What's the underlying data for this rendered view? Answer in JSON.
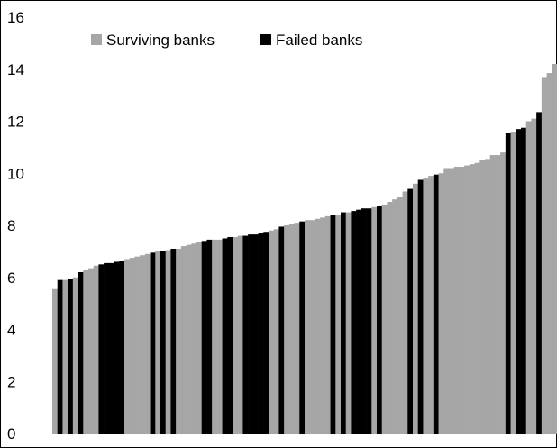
{
  "chart_data": {
    "type": "bar",
    "title": "",
    "xlabel": "",
    "ylabel": "",
    "ylim": [
      0,
      16
    ],
    "yticks": [
      "0",
      "2",
      "4",
      "6",
      "8",
      "10",
      "12",
      "14",
      "16"
    ],
    "grid": false,
    "legend_position": "top-left",
    "legend": [
      {
        "label": "Surviving banks",
        "color": "#a6a6a6"
      },
      {
        "label": "Failed banks",
        "color": "#000000"
      }
    ],
    "series": [
      {
        "name": "Surviving banks",
        "color": "#a6a6a6",
        "values": [
          5.55,
          5.9,
          6.0,
          6.3,
          6.35,
          6.45,
          6.7,
          6.75,
          6.8,
          6.85,
          6.9,
          7.05,
          7.1,
          7.2,
          7.25,
          7.3,
          7.35,
          7.4,
          7.45,
          7.5,
          7.55,
          7.6,
          7.65,
          7.7,
          7.75,
          7.8,
          7.85,
          7.9,
          8.0,
          8.05,
          8.1,
          8.2,
          8.25,
          8.3,
          8.35,
          8.4,
          8.5,
          8.8,
          8.9,
          9.0,
          9.1,
          9.3,
          9.6,
          9.8,
          9.9,
          10.0,
          10.2,
          10.25,
          10.3,
          10.35,
          10.4,
          10.5,
          10.55,
          10.7,
          10.8,
          11.1,
          11.4,
          11.6,
          11.7,
          12.0,
          12.3,
          13.6,
          13.8,
          14.2
        ]
      },
      {
        "name": "Failed banks",
        "color": "#000000",
        "values": [
          5.9,
          5.95,
          6.2,
          6.5,
          6.55,
          6.6,
          6.65,
          6.95,
          7.0,
          7.1,
          7.4,
          7.45,
          7.5,
          7.55,
          7.6,
          7.65,
          7.7,
          7.75,
          7.95,
          8.15,
          8.4,
          8.5,
          8.55,
          8.6,
          8.65,
          8.7,
          9.4,
          9.75,
          9.95,
          11.55,
          11.7,
          11.75,
          12.35
        ]
      }
    ],
    "bars": [
      {
        "v": 5.55,
        "s": 0
      },
      {
        "v": 5.9,
        "s": 1
      },
      {
        "v": 5.9,
        "s": 0
      },
      {
        "v": 5.95,
        "s": 1
      },
      {
        "v": 6.0,
        "s": 0
      },
      {
        "v": 6.2,
        "s": 1
      },
      {
        "v": 6.3,
        "s": 0
      },
      {
        "v": 6.35,
        "s": 0
      },
      {
        "v": 6.45,
        "s": 0
      },
      {
        "v": 6.5,
        "s": 1
      },
      {
        "v": 6.55,
        "s": 1
      },
      {
        "v": 6.55,
        "s": 1
      },
      {
        "v": 6.6,
        "s": 1
      },
      {
        "v": 6.65,
        "s": 1
      },
      {
        "v": 6.7,
        "s": 0
      },
      {
        "v": 6.75,
        "s": 0
      },
      {
        "v": 6.8,
        "s": 0
      },
      {
        "v": 6.85,
        "s": 0
      },
      {
        "v": 6.9,
        "s": 0
      },
      {
        "v": 6.95,
        "s": 1
      },
      {
        "v": 7.0,
        "s": 0
      },
      {
        "v": 7.0,
        "s": 1
      },
      {
        "v": 7.05,
        "s": 0
      },
      {
        "v": 7.1,
        "s": 1
      },
      {
        "v": 7.1,
        "s": 0
      },
      {
        "v": 7.2,
        "s": 0
      },
      {
        "v": 7.25,
        "s": 0
      },
      {
        "v": 7.3,
        "s": 0
      },
      {
        "v": 7.35,
        "s": 0
      },
      {
        "v": 7.4,
        "s": 1
      },
      {
        "v": 7.45,
        "s": 1
      },
      {
        "v": 7.45,
        "s": 0
      },
      {
        "v": 7.45,
        "s": 0
      },
      {
        "v": 7.5,
        "s": 1
      },
      {
        "v": 7.55,
        "s": 1
      },
      {
        "v": 7.55,
        "s": 0
      },
      {
        "v": 7.6,
        "s": 0
      },
      {
        "v": 7.6,
        "s": 1
      },
      {
        "v": 7.65,
        "s": 1
      },
      {
        "v": 7.65,
        "s": 1
      },
      {
        "v": 7.7,
        "s": 1
      },
      {
        "v": 7.75,
        "s": 1
      },
      {
        "v": 7.8,
        "s": 0
      },
      {
        "v": 7.85,
        "s": 0
      },
      {
        "v": 7.95,
        "s": 1
      },
      {
        "v": 8.0,
        "s": 0
      },
      {
        "v": 8.05,
        "s": 0
      },
      {
        "v": 8.1,
        "s": 0
      },
      {
        "v": 8.15,
        "s": 1
      },
      {
        "v": 8.2,
        "s": 0
      },
      {
        "v": 8.2,
        "s": 0
      },
      {
        "v": 8.25,
        "s": 0
      },
      {
        "v": 8.3,
        "s": 0
      },
      {
        "v": 8.35,
        "s": 0
      },
      {
        "v": 8.4,
        "s": 1
      },
      {
        "v": 8.4,
        "s": 0
      },
      {
        "v": 8.5,
        "s": 1
      },
      {
        "v": 8.5,
        "s": 0
      },
      {
        "v": 8.55,
        "s": 1
      },
      {
        "v": 8.6,
        "s": 1
      },
      {
        "v": 8.65,
        "s": 1
      },
      {
        "v": 8.65,
        "s": 1
      },
      {
        "v": 8.7,
        "s": 0
      },
      {
        "v": 8.75,
        "s": 1
      },
      {
        "v": 8.8,
        "s": 0
      },
      {
        "v": 8.9,
        "s": 0
      },
      {
        "v": 9.0,
        "s": 0
      },
      {
        "v": 9.1,
        "s": 0
      },
      {
        "v": 9.3,
        "s": 0
      },
      {
        "v": 9.4,
        "s": 1
      },
      {
        "v": 9.6,
        "s": 0
      },
      {
        "v": 9.75,
        "s": 1
      },
      {
        "v": 9.8,
        "s": 0
      },
      {
        "v": 9.9,
        "s": 0
      },
      {
        "v": 9.95,
        "s": 1
      },
      {
        "v": 10.0,
        "s": 0
      },
      {
        "v": 10.2,
        "s": 0
      },
      {
        "v": 10.2,
        "s": 0
      },
      {
        "v": 10.25,
        "s": 0
      },
      {
        "v": 10.25,
        "s": 0
      },
      {
        "v": 10.3,
        "s": 0
      },
      {
        "v": 10.35,
        "s": 0
      },
      {
        "v": 10.4,
        "s": 0
      },
      {
        "v": 10.5,
        "s": 0
      },
      {
        "v": 10.55,
        "s": 0
      },
      {
        "v": 10.7,
        "s": 0
      },
      {
        "v": 10.7,
        "s": 0
      },
      {
        "v": 10.8,
        "s": 0
      },
      {
        "v": 11.55,
        "s": 1
      },
      {
        "v": 11.6,
        "s": 0
      },
      {
        "v": 11.7,
        "s": 1
      },
      {
        "v": 11.75,
        "s": 1
      },
      {
        "v": 12.0,
        "s": 0
      },
      {
        "v": 12.1,
        "s": 0
      },
      {
        "v": 12.35,
        "s": 1
      },
      {
        "v": 13.7,
        "s": 0
      },
      {
        "v": 13.85,
        "s": 0
      },
      {
        "v": 14.2,
        "s": 0
      }
    ]
  }
}
